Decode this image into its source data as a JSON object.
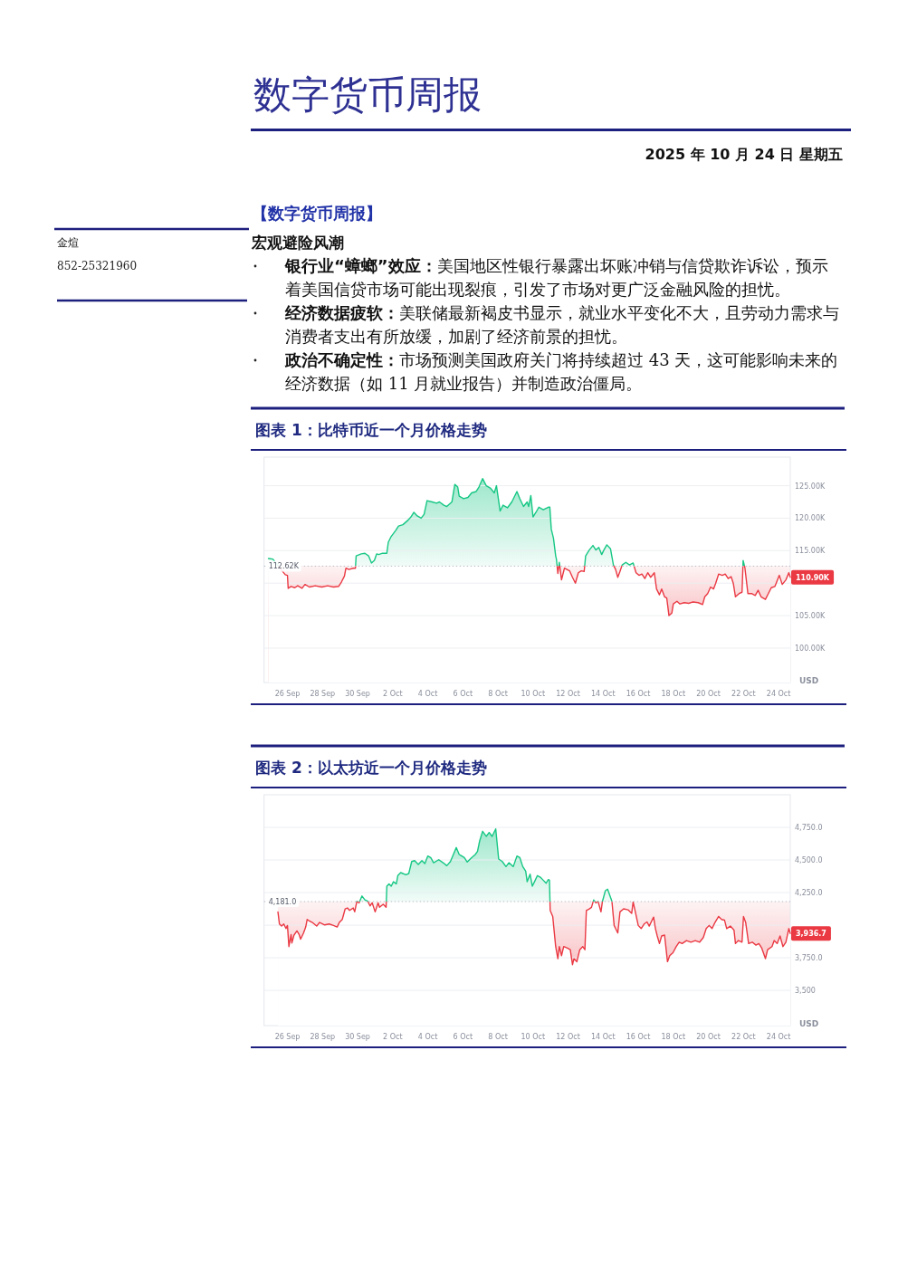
{
  "chart_data": [
    {
      "type": "other",
      "title": "数字货币周报",
      "subtitle": "2025 年 10 月 24 日 星期五",
      "annotations": [
        "【数字货币周报】",
        "宏观避险风潮",
        "银行业“蟑螂”效应：美国地区性银行暴露出坏账冲销与信贷欺诈诉讼，预示着美国信贷市场可能出现裂痕，引发了市场对更广泛金融风险的担忧。",
        "经济数据疲软：美联储最新褐皮书显示，就业水平变化不大，且劳动力需求与消费者支出有所放缓，加剧了经济前景的担忧。",
        "政治不确定性：市场预测美国政府关门将持续超过 43 天，这可能影响未来的经济数据（如 11 月就业报告）并制造政治僵局。",
        "金煊",
        "852-25321960"
      ]
    },
    {
      "type": "area",
      "title": "图表 1：比特币近一个月价格走势",
      "ylabel": "USD",
      "color": "#16c784",
      "grid": "y",
      "xlim": [
        "--09-24T16:00",
        "--10-24T16:00"
      ],
      "xticks": [
        {
          "value": "--09-26",
          "label": "26 Sep"
        },
        {
          "value": "--09-28",
          "label": "28 Sep"
        },
        {
          "value": "--09-30",
          "label": "30 Sep"
        },
        {
          "value": "--10-02",
          "label": "2 Oct"
        },
        {
          "value": "--10-04",
          "label": "4 Oct"
        },
        {
          "value": "--10-06",
          "label": "6 Oct"
        },
        {
          "value": "--10-08",
          "label": "8 Oct"
        },
        {
          "value": "--10-10",
          "label": "10 Oct"
        },
        {
          "value": "--10-12",
          "label": "12 Oct"
        },
        {
          "value": "--10-14",
          "label": "14 Oct"
        },
        {
          "value": "--10-16",
          "label": "16 Oct"
        },
        {
          "value": "--10-18",
          "label": "18 Oct"
        },
        {
          "value": "--10-20",
          "label": "20 Oct"
        },
        {
          "value": "--10-22",
          "label": "22 Oct"
        },
        {
          "value": "--10-24",
          "label": "24 Oct"
        }
      ],
      "ylim": [
        94.7,
        129.4
      ],
      "yticks": [
        {
          "value": 100,
          "label": "100.00K"
        },
        {
          "value": 105,
          "label": "105.00K"
        },
        {
          "value": 110,
          "label": null
        },
        {
          "value": 115,
          "label": "115.00K"
        },
        {
          "value": 120,
          "label": "120.00K"
        },
        {
          "value": 125,
          "label": "125.00K"
        }
      ],
      "ref_lines": [
        {
          "axis": "y",
          "value": 112.62,
          "label": "112.62K",
          "line_style": "dotted",
          "color": "#b8bcc6"
        }
      ],
      "annotations": [
        {
          "text": "110.90K",
          "x": "--10-24T16:00",
          "y": 110.9
        }
      ],
      "x": [
        "--09-24T22:00",
        "--09-25T04:00",
        "--09-25T21:00",
        "--09-26T00:00",
        "--09-26T01:00",
        "--09-26T05:00",
        "--09-26T10:00",
        "--09-26T14:00",
        "--09-26T20:00",
        "--09-27T00:00",
        "--09-27T06:00",
        "--09-27T14:00",
        "--09-27T23:00",
        "--09-28T07:00",
        "--09-28T15:00",
        "--09-28T22:00",
        "--09-29T02:00",
        "--09-29T06:00",
        "--09-29T08:00",
        "--09-29T12:00",
        "--09-29T18:00",
        "--09-29T21:00",
        "--09-29T22:00",
        "--09-30T05:00",
        "--09-30T10:00",
        "--09-30T15:00",
        "--09-30T19:00",
        "--09-30T23:00",
        "--10-01T02:00",
        "--10-01T05:00",
        "--10-01T10:00",
        "--10-01T16:00",
        "--10-01T18:00",
        "--10-01T22:00",
        "--10-02T04:00",
        "--10-02T08:00",
        "--10-02T14:00",
        "--10-02T21:00",
        "--10-03T01:00",
        "--10-03T05:00",
        "--10-03T09:00",
        "--10-03T15:00",
        "--10-03T19:00",
        "--10-03T23:00",
        "--10-04T06:00",
        "--10-04T12:00",
        "--10-04T16:00",
        "--10-04T22:00",
        "--10-05T02:00",
        "--10-05T09:00",
        "--10-05T13:00",
        "--10-05T17:00",
        "--10-05T19:00",
        "--10-06T01:00",
        "--10-06T07:00",
        "--10-06T12:00",
        "--10-06T18:00",
        "--10-06T22:00",
        "--10-07T03:00",
        "--10-07T08:00",
        "--10-07T14:00",
        "--10-07T19:00",
        "--10-07T22:00",
        "--10-08T03:00",
        "--10-08T07:00",
        "--10-08T13:00",
        "--10-08T19:00",
        "--10-09T02:00",
        "--10-09T06:00",
        "--10-09T11:00",
        "--10-09T16:00",
        "--10-09T18:00",
        "--10-09T21:00",
        "--10-10T00:00",
        "--10-10T04:00",
        "--10-10T08:00",
        "--10-10T14:00",
        "--10-10T21:00",
        "--10-10T23:00",
        "--10-11T01:00",
        "--10-11T04:00",
        "--10-11T07:00",
        "--10-11T08:00",
        "--10-11T10:00",
        "--10-11T12:00",
        "--10-11T15:00",
        "--10-11T19:00",
        "--10-12T02:00",
        "--10-12T06:00",
        "--10-12T10:00",
        "--10-12T14:00",
        "--10-12T18:00",
        "--10-12T22:00",
        "--10-13T00:00",
        "--10-13T05:00",
        "--10-13T10:00",
        "--10-13T14:00",
        "--10-13T18:00",
        "--10-13T22:00",
        "--10-14T01:00",
        "--10-14T05:00",
        "--10-14T10:00",
        "--10-14T14:00",
        "--10-14T17:00",
        "--10-14T20:00",
        "--10-14T23:00",
        "--10-15T02:00",
        "--10-15T07:00",
        "--10-15T12:00",
        "--10-15T17:00",
        "--10-15T21:00",
        "--10-16T01:00",
        "--10-16T05:00",
        "--10-16T09:00",
        "--10-16T13:00",
        "--10-16T17:00",
        "--10-16T22:00",
        "--10-17T01:00",
        "--10-17T05:00",
        "--10-17T08:00",
        "--10-17T12:00",
        "--10-17T15:00",
        "--10-17T18:00",
        "--10-17T22:00",
        "--10-18T00:00",
        "--10-18T05:00",
        "--10-18T09:00",
        "--10-18T15:00",
        "--10-18T21:00",
        "--10-19T03:00",
        "--10-19T10:00",
        "--10-19T16:00",
        "--10-19T19:00",
        "--10-19T23:00",
        "--10-20T03:00",
        "--10-20T07:00",
        "--10-20T10:00",
        "--10-20T14:00",
        "--10-20T19:00",
        "--10-20T23:00",
        "--10-21T03:00",
        "--10-21T07:00",
        "--10-21T10:00",
        "--10-21T13:00",
        "--10-21T18:00",
        "--10-21T22:00",
        "--10-21T23:30",
        "--10-22T02:00",
        "--10-22T06:00",
        "--10-22T11:00",
        "--10-22T16:00",
        "--10-22T20:00",
        "--10-23T00:00",
        "--10-23T06:00",
        "--10-23T10:00",
        "--10-23T14:00",
        "--10-23T19:00",
        "--10-24T01:00",
        "--10-24T05:00",
        "--10-24T10:00",
        "--10-24T14:00",
        "--10-24T16:00"
      ],
      "values": [
        113.8,
        113.7,
        111.3,
        111.2,
        109.2,
        109.5,
        109.3,
        109.6,
        109.2,
        109.8,
        109.4,
        109.6,
        109.4,
        109.6,
        109.4,
        109.5,
        110.2,
        111.1,
        112.3,
        112.1,
        112.3,
        112.3,
        114.2,
        114.5,
        114.6,
        114.2,
        113.1,
        113.5,
        114.5,
        114.4,
        114.6,
        114.6,
        116.3,
        117.2,
        118.1,
        118.8,
        119.0,
        119.7,
        120.2,
        120.9,
        120.4,
        120.0,
        120.6,
        122.7,
        122.5,
        122.3,
        122.5,
        122.0,
        121.8,
        122.5,
        125.2,
        124.8,
        123.4,
        123.0,
        123.2,
        123.9,
        124.1,
        124.8,
        126.1,
        125.0,
        124.6,
        123.9,
        125.0,
        121.1,
        122.0,
        121.6,
        122.5,
        124.1,
        123.0,
        121.8,
        122.5,
        121.8,
        123.5,
        120.2,
        120.9,
        121.7,
        121.3,
        121.7,
        121.7,
        118.3,
        116.9,
        114.2,
        113.7,
        111.5,
        113.2,
        110.5,
        112.3,
        111.9,
        110.9,
        110.0,
        111.6,
        111.9,
        111.8,
        114.2,
        115.1,
        115.8,
        115.1,
        115.5,
        114.4,
        115.1,
        115.9,
        115.3,
        112.8,
        112.1,
        110.9,
        111.8,
        112.8,
        113.2,
        112.8,
        113.1,
        111.6,
        111.2,
        111.4,
        110.7,
        111.6,
        110.9,
        111.6,
        109.1,
        108.2,
        109.1,
        107.9,
        107.7,
        105.0,
        105.4,
        106.8,
        107.2,
        106.8,
        107.0,
        106.9,
        107.1,
        107.0,
        106.7,
        107.9,
        108.4,
        109.4,
        109.1,
        110.0,
        111.4,
        111.2,
        111.4,
        110.7,
        111.0,
        110.0,
        107.9,
        108.4,
        108.6,
        113.5,
        112.3,
        108.4,
        108.4,
        108.1,
        108.9,
        107.9,
        107.5,
        108.4,
        109.3,
        109.5,
        111.2,
        109.8,
        110.5,
        111.6,
        110.9
      ]
    },
    {
      "type": "area",
      "title": "图表 2：以太坊近一个月价格走势",
      "ylabel": "USD",
      "color": "#16c784",
      "grid": "y",
      "xlim": [
        "--09-24T16:00",
        "--10-24T16:00"
      ],
      "xticks": [
        {
          "value": "--09-26",
          "label": "26 Sep"
        },
        {
          "value": "--09-28",
          "label": "28 Sep"
        },
        {
          "value": "--09-30",
          "label": "30 Sep"
        },
        {
          "value": "--10-02",
          "label": "2 Oct"
        },
        {
          "value": "--10-04",
          "label": "4 Oct"
        },
        {
          "value": "--10-06",
          "label": "6 Oct"
        },
        {
          "value": "--10-08",
          "label": "8 Oct"
        },
        {
          "value": "--10-10",
          "label": "10 Oct"
        },
        {
          "value": "--10-12",
          "label": "12 Oct"
        },
        {
          "value": "--10-14",
          "label": "14 Oct"
        },
        {
          "value": "--10-16",
          "label": "16 Oct"
        },
        {
          "value": "--10-18",
          "label": "18 Oct"
        },
        {
          "value": "--10-20",
          "label": "20 Oct"
        },
        {
          "value": "--10-22",
          "label": "22 Oct"
        },
        {
          "value": "--10-24",
          "label": "24 Oct"
        }
      ],
      "ylim": [
        3230,
        5000
      ],
      "yticks": [
        {
          "value": 3500,
          "label": "3,500"
        },
        {
          "value": 3750,
          "label": "3,750.0"
        },
        {
          "value": 4000,
          "label": null
        },
        {
          "value": 4250,
          "label": "4,250.0"
        },
        {
          "value": 4500,
          "label": "4,500.0"
        },
        {
          "value": 4750,
          "label": "4,750.0"
        }
      ],
      "ref_lines": [
        {
          "axis": "y",
          "value": 4181.0,
          "label": "4,181.0",
          "line_style": "dotted",
          "color": "#b8bcc6"
        }
      ],
      "annotations": [
        {
          "text": "3,936.7",
          "x": "--10-24T16:00",
          "y": 3936.7
        }
      ],
      "x": [
        "--09-25T11:00",
        "--09-25T13:00",
        "--09-25T16:00",
        "--09-25T19:00",
        "--09-25T22:00",
        "--09-26T00:00",
        "--09-26T02:00",
        "--09-26T05:00",
        "--09-26T06:00",
        "--09-26T09:00",
        "--09-26T13:00",
        "--09-26T16:00",
        "--09-26T18:00",
        "--09-26T22:00",
        "--09-27T01:00",
        "--09-27T03:00",
        "--09-27T06:00",
        "--09-27T10:00",
        "--09-27T16:00",
        "--09-27T20:00",
        "--09-28T03:00",
        "--09-28T09:00",
        "--09-28T15:00",
        "--09-28T20:00",
        "--09-28T23:00",
        "--09-29T03:00",
        "--09-29T07:00",
        "--09-29T10:00",
        "--09-29T13:00",
        "--09-29T18:00",
        "--09-29T20:00",
        "--09-29T23:00",
        "--09-30T02:00",
        "--09-30T06:00",
        "--09-30T10:00",
        "--09-30T14:00",
        "--09-30T17:00",
        "--09-30T20:00",
        "--10-01T00:00",
        "--10-01T04:00",
        "--10-01T06:00",
        "--10-01T11:00",
        "--10-01T15:00",
        "--10-01T16:00",
        "--10-01T19:00",
        "--10-01T22:00",
        "--10-02T01:00",
        "--10-02T05:00",
        "--10-02T07:00",
        "--10-02T11:00",
        "--10-02T18:00",
        "--10-02T22:00",
        "--10-03T02:00",
        "--10-03T06:00",
        "--10-03T11:00",
        "--10-03T16:00",
        "--10-03T20:00",
        "--10-04T00:00",
        "--10-04T04:00",
        "--10-04T08:00",
        "--10-04T15:00",
        "--10-04T21:00",
        "--10-05T02:00",
        "--10-05T07:00",
        "--10-05T11:00",
        "--10-05T15:00",
        "--10-05T19:00",
        "--10-06T02:00",
        "--10-06T06:00",
        "--10-06T12:00",
        "--10-06T17:00",
        "--10-06T20:00",
        "--10-06T23:00",
        "--10-07T03:00",
        "--10-07T08:00",
        "--10-07T12:00",
        "--10-07T16:00",
        "--10-07T21:00",
        "--10-08T01:00",
        "--10-08T06:00",
        "--10-08T11:00",
        "--10-08T15:00",
        "--10-08T21:00",
        "--10-09T02:00",
        "--10-09T06:00",
        "--10-09T10:00",
        "--10-09T14:00",
        "--10-09T16:00",
        "--10-09T20:00",
        "--10-09T23:00",
        "--10-10T02:00",
        "--10-10T06:00",
        "--10-10T10:00",
        "--10-10T14:00",
        "--10-10T18:00",
        "--10-10T21:00",
        "--10-10T22:30",
        "--10-10T23:30",
        "--10-11T03:00",
        "--10-11T05:00",
        "--10-11T07:00",
        "--10-11T10:00",
        "--10-11T12:00",
        "--10-11T15:00",
        "--10-11T18:00",
        "--10-11T23:00",
        "--10-12T03:00",
        "--10-12T06:00",
        "--10-12T08:00",
        "--10-12T12:00",
        "--10-12T16:00",
        "--10-12T20:00",
        "--10-12T23:00",
        "--10-13T01:00",
        "--10-13T05:00",
        "--10-13T08:00",
        "--10-13T11:00",
        "--10-13T14:00",
        "--10-13T17:00",
        "--10-13T21:00",
        "--10-13T23:00",
        "--10-14T03:00",
        "--10-14T06:00",
        "--10-14T09:00",
        "--10-14T12:00",
        "--10-14T15:00",
        "--10-14T17:00",
        "--10-14T20:00",
        "--10-14T23:00",
        "--10-15T04:00",
        "--10-15T10:00",
        "--10-15T15:00",
        "--10-15T17:00",
        "--10-15T20:00",
        "--10-16T00:00",
        "--10-16T04:00",
        "--10-16T08:00",
        "--10-16T12:00",
        "--10-16T15:00",
        "--10-16T21:00",
        "--10-16T23:30",
        "--10-17T02:00",
        "--10-17T05:00",
        "--10-17T08:00",
        "--10-17T12:00",
        "--10-17T16:00",
        "--10-17T19:00",
        "--10-17T23:30",
        "--10-18T04:00",
        "--10-18T08:00",
        "--10-18T12:00",
        "--10-18T18:00",
        "--10-19T00:00",
        "--10-19T06:00",
        "--10-19T12:00",
        "--10-19T17:00",
        "--10-19T21:00",
        "--10-20T01:00",
        "--10-20T05:00",
        "--10-20T09:00",
        "--10-20T14:00",
        "--10-20T18:00",
        "--10-20T22:00",
        "--10-21T01:00",
        "--10-21T06:00",
        "--10-21T11:00",
        "--10-21T13:00",
        "--10-21T17:00",
        "--10-21T22:00",
        "--10-22T00:00",
        "--10-22T03:00",
        "--10-22T07:00",
        "--10-22T12:00",
        "--10-22T17:00",
        "--10-22T21:00",
        "--10-23T01:00",
        "--10-23T06:00",
        "--10-23T09:00",
        "--10-23T15:00",
        "--10-23T18:00",
        "--10-23T22:00",
        "--10-24T02:00",
        "--10-24T06:00",
        "--10-24T10:00",
        "--10-24T14:00",
        "--10-24T16:00"
      ],
      "values": [
        4102,
        4009,
        3993,
        4009,
        3974,
        3998,
        3836,
        3928,
        3863,
        3924,
        3956,
        3928,
        3893,
        3940,
        3986,
        4044,
        4032,
        4021,
        3993,
        4021,
        4002,
        4009,
        3998,
        3986,
        4021,
        4044,
        4125,
        4132,
        4113,
        4132,
        4102,
        4183,
        4171,
        4224,
        4194,
        4183,
        4148,
        4171,
        4102,
        4171,
        4137,
        4160,
        4137,
        4299,
        4317,
        4299,
        4333,
        4317,
        4380,
        4403,
        4387,
        4396,
        4488,
        4495,
        4465,
        4495,
        4472,
        4530,
        4518,
        4479,
        4502,
        4479,
        4456,
        4488,
        4542,
        4595,
        4542,
        4518,
        4484,
        4518,
        4542,
        4565,
        4646,
        4720,
        4681,
        4711,
        4681,
        4738,
        4507,
        4488,
        4449,
        4479,
        4449,
        4530,
        4518,
        4449,
        4414,
        4333,
        4391,
        4299,
        4333,
        4380,
        4368,
        4345,
        4322,
        4350,
        4345,
        4113,
        4067,
        3951,
        3836,
        3743,
        3836,
        3766,
        3836,
        3824,
        3812,
        3697,
        3743,
        3720,
        3812,
        3836,
        3812,
        4113,
        4125,
        4137,
        4194,
        4171,
        4183,
        4102,
        4183,
        4264,
        4276,
        4229,
        4183,
        3998,
        3974,
        3940,
        4102,
        4125,
        4118,
        4090,
        4178,
        4102,
        3998,
        3974,
        4009,
        4025,
        3993,
        4062,
        3974,
        3917,
        3859,
        3917,
        3924,
        3720,
        3766,
        3789,
        3836,
        3870,
        3859,
        3882,
        3870,
        3882,
        3870,
        3905,
        3974,
        3998,
        3974,
        4021,
        4067,
        4044,
        4039,
        3974,
        3993,
        3963,
        3859,
        3882,
        3870,
        4067,
        4021,
        3859,
        3870,
        3847,
        3859,
        3824,
        3743,
        3812,
        3836,
        3882,
        3859,
        3917,
        3836,
        3870,
        3974,
        3936.7
      ]
    }
  ]
}
